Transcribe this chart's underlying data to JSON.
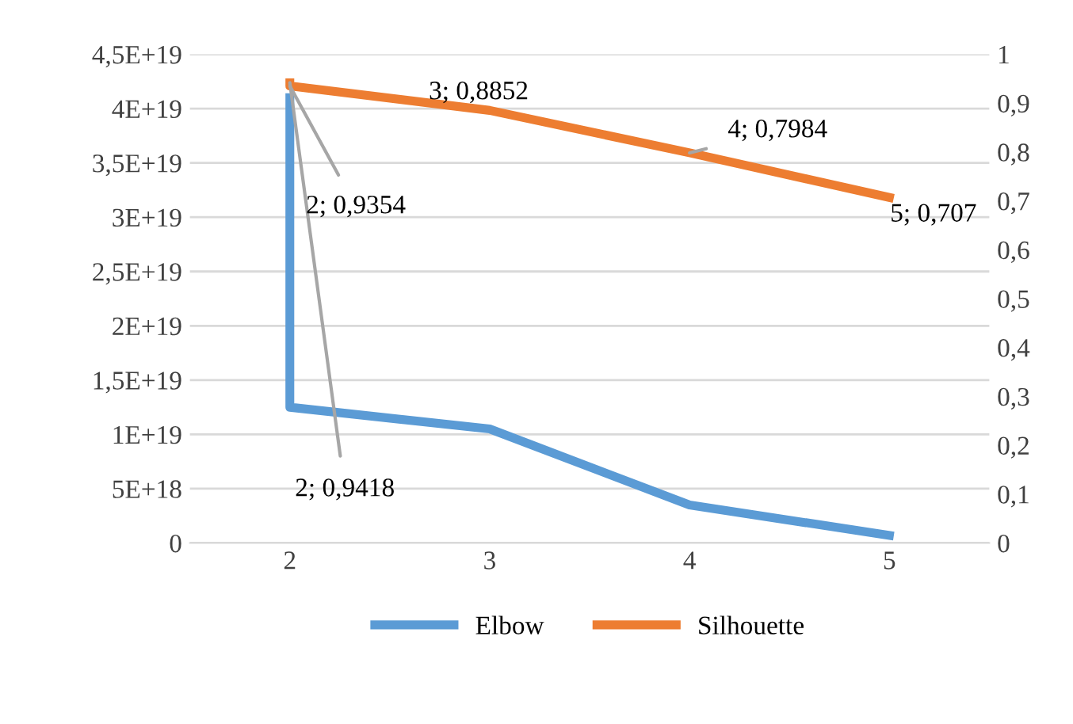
{
  "chart_data": {
    "type": "line",
    "x": [
      2,
      2,
      3,
      4,
      5
    ],
    "series": [
      {
        "name": "Elbow",
        "color": "#5b9bd5",
        "values": [
          4.1e+19,
          1.25e+19,
          1.05e+19,
          3.5e+18,
          7e+17
        ]
      },
      {
        "name": "Silhouette",
        "color": "#ed7d31",
        "axis": "y2",
        "values": [
          0.9418,
          0.9354,
          0.8852,
          0.7984,
          0.707
        ],
        "value_labels": [
          "2; 0,9418",
          "2; 0,9354",
          "3; 0,8852",
          "4; 0,7984",
          "5; 0,707"
        ]
      }
    ],
    "xlim": [
      1.5,
      5.5
    ],
    "xticks": [
      2,
      3,
      4,
      5
    ],
    "ylim": [
      0,
      4.5e+19
    ],
    "yticks": [
      {
        "value": 0,
        "label": "0"
      },
      {
        "value": 5e+18,
        "label": "5E+18"
      },
      {
        "value": 1e+19,
        "label": "1E+19"
      },
      {
        "value": 1.5e+19,
        "label": "1,5E+19"
      },
      {
        "value": 2e+19,
        "label": "2E+19"
      },
      {
        "value": 2.5e+19,
        "label": "2,5E+19"
      },
      {
        "value": 3e+19,
        "label": "3E+19"
      },
      {
        "value": 3.5e+19,
        "label": "3,5E+19"
      },
      {
        "value": 4e+19,
        "label": "4E+19"
      },
      {
        "value": 4.5e+19,
        "label": "4,5E+19"
      }
    ],
    "y2lim": [
      0,
      1
    ],
    "y2ticks": [
      {
        "value": 0,
        "label": "0"
      },
      {
        "value": 0.1,
        "label": "0,1"
      },
      {
        "value": 0.2,
        "label": "0,2"
      },
      {
        "value": 0.3,
        "label": "0,3"
      },
      {
        "value": 0.4,
        "label": "0,4"
      },
      {
        "value": 0.5,
        "label": "0,5"
      },
      {
        "value": 0.6,
        "label": "0,6"
      },
      {
        "value": 0.7,
        "label": "0,7"
      },
      {
        "value": 0.8,
        "label": "0,8"
      },
      {
        "value": 0.9,
        "label": "0,9"
      },
      {
        "value": 1,
        "label": "1"
      }
    ],
    "grid": "y",
    "legend": "bottom",
    "marker": "none",
    "line_style": "solid"
  }
}
